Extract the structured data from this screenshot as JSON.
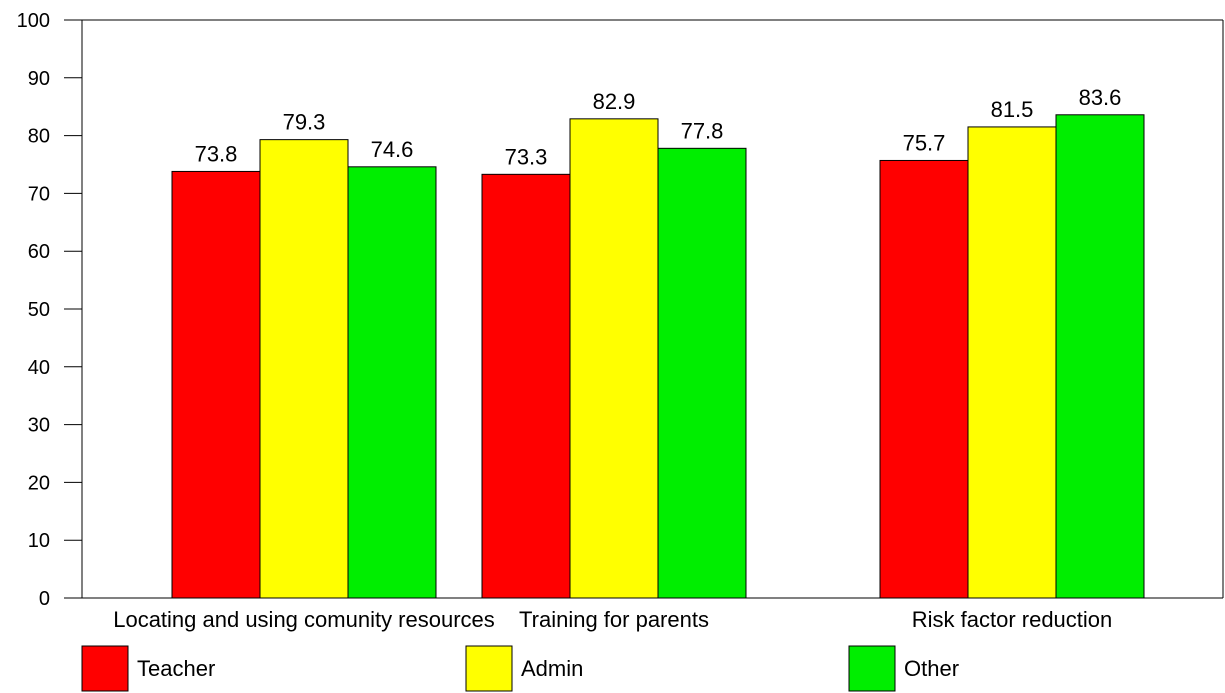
{
  "chart_data": {
    "type": "bar",
    "title": "",
    "xlabel": "",
    "ylabel": "",
    "ylim": [
      0,
      100
    ],
    "yticks": [
      0,
      10,
      20,
      30,
      40,
      50,
      60,
      70,
      80,
      90,
      100
    ],
    "categories": [
      "Locating and using comunity resources",
      "Training for parents",
      "Risk factor reduction"
    ],
    "series": [
      {
        "name": "Teacher",
        "color": "#ff0000",
        "values": [
          73.8,
          73.3,
          75.7
        ]
      },
      {
        "name": "Admin",
        "color": "#ffff00",
        "values": [
          79.3,
          82.9,
          81.5
        ]
      },
      {
        "name": "Other",
        "color": "#00ee00",
        "values": [
          74.6,
          77.8,
          83.6
        ]
      }
    ],
    "data_labels": true,
    "grid": false,
    "legend_position": "bottom"
  }
}
